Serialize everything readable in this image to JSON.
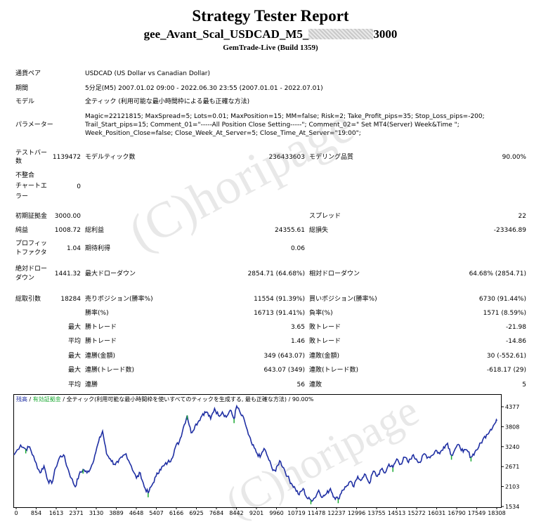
{
  "header": {
    "title": "Strategy Tester Report",
    "subtitle_pre": "gee_Avant_Scal_USDCAD_M5_",
    "subtitle_post": "3000",
    "server": "GemTrade-Live (Build 1359)"
  },
  "info": {
    "symbol_label": "通貨ペア",
    "symbol_value": "USDCAD (US Dollar vs Canadian Dollar)",
    "period_label": "期間",
    "period_value": "5分足(M5) 2007.01.02 09:00 - 2022.06.30 23:55 (2007.01.01 - 2022.07.01)",
    "model_label": "モデル",
    "model_value": "全ティック (利用可能な最小時間枠による最も正確な方法)",
    "params_label": "パラメーター",
    "params_lines": [
      "Magic=22121815; MaxSpread=5; Lots=0.01; MaxPosition=15; MM=false; Risk=2; Take_Profit_pips=35; Stop_Loss_pips=-200;",
      "Trail_Start_pips=15; Comment_01=\"-----All Position Close Setting-----\"; Comment_02=\" Set MT4(Server) Week&Time \";",
      "Week_Position_Close=false; Close_Week_At_Server=5; Close_Time_At_Server=\"19:00\";"
    ]
  },
  "stats": {
    "bars_label_1": "テストバー",
    "bars_label_2": "数",
    "bars_value": "1139472",
    "ticks_label": "モデルティック数",
    "ticks_value": "236433603",
    "quality_label": "モデリング品質",
    "quality_value": "90.00%",
    "mismatch_lines": [
      "不整合",
      "チャートエ",
      "ラー"
    ],
    "mismatch_value": "0",
    "deposit_label": "初期証拠金",
    "deposit_value": "3000.00",
    "spread_label": "スプレッド",
    "spread_value": "22",
    "netprofit_label": "純益",
    "netprofit_value": "1008.72",
    "grossprofit_label": "総利益",
    "grossprofit_value": "24355.61",
    "grossloss_label": "総損失",
    "grossloss_value": "-23346.89",
    "pf_label_1": "プロフィッ",
    "pf_label_2": "トファクタ",
    "pf_value": "1.04",
    "payoff_label": "期待利得",
    "payoff_value": "0.06",
    "absdd_label_1": "絶対ドロー",
    "absdd_label_2": "ダウン",
    "absdd_value": "1441.32",
    "maxdd_label": "最大ドローダウン",
    "maxdd_value": "2854.71 (64.68%)",
    "reldd_label": "相対ドローダウン",
    "reldd_value": "64.68% (2854.71)",
    "trades_label": "総取引数",
    "trades_value": "18284",
    "short_label": "売りポジション(勝率%)",
    "short_value": "11554 (91.39%)",
    "long_label": "買いポジション(勝率%)",
    "long_value": "6730 (91.44%)",
    "win_label": "勝率(%)",
    "win_value": "16713 (91.41%)",
    "loss_label": "負率(%)",
    "loss_value": "1571 (8.59%)",
    "max_label": "最大",
    "avg_label": "平均",
    "maxwin_label": "勝トレード",
    "maxwin_value": "3.65",
    "maxloss_label": "敗トレード",
    "maxloss_value": "-21.98",
    "avgwin_label": "勝トレード",
    "avgwin_value": "1.46",
    "avgloss_label": "敗トレード",
    "avgloss_value": "-14.86",
    "mcw_label": "連勝(金額)",
    "mcw_value": "349 (643.07)",
    "mcl_label": "連敗(金額)",
    "mcl_value": "30 (-552.61)",
    "mcp_label": "連勝(トレード数)",
    "mcp_value": "643.07 (349)",
    "mcll_label": "連敗(トレード数)",
    "mcll_value": "-618.17 (29)",
    "acw_label": "連勝",
    "acw_value": "56",
    "acl_label": "連敗",
    "acl_value": "5"
  },
  "watermark": {
    "text1": "(C)horipage",
    "text2": "(C)horipage"
  },
  "chart_data": {
    "type": "line",
    "legend": {
      "item1": "残高",
      "sep": " / ",
      "item2": "有効証拠金",
      "rest": " / 全ティック(利用可能な最小時間枠を使いすべてのティックを生成する, 最も正確な方法) / 90.00%"
    },
    "line_color": "#1f2fa3",
    "equity_color": "#1aa832",
    "xlim": [
      0,
      18700
    ],
    "ylim": [
      1534,
      4480
    ],
    "x_ticks": [
      "0",
      "854",
      "1613",
      "2371",
      "3130",
      "3889",
      "4648",
      "5407",
      "6166",
      "6925",
      "7684",
      "8442",
      "9201",
      "9960",
      "10719",
      "11478",
      "12237",
      "12996",
      "13755",
      "14513",
      "15272",
      "16031",
      "16790",
      "17549",
      "18308"
    ],
    "y_ticks": [
      "4377",
      "3808",
      "3240",
      "2671",
      "2103",
      "1534"
    ],
    "balance_points": [
      [
        0,
        3020
      ],
      [
        250,
        3300
      ],
      [
        450,
        3180
      ],
      [
        600,
        3250
      ],
      [
        800,
        2850
      ],
      [
        1000,
        2500
      ],
      [
        1150,
        2700
      ],
      [
        1300,
        2280
      ],
      [
        1450,
        2200
      ],
      [
        1600,
        2650
      ],
      [
        1750,
        2950
      ],
      [
        1900,
        3020
      ],
      [
        2050,
        2650
      ],
      [
        2200,
        2350
      ],
      [
        2350,
        2100
      ],
      [
        2500,
        2450
      ],
      [
        2650,
        2600
      ],
      [
        2800,
        2500
      ],
      [
        2950,
        2650
      ],
      [
        3100,
        3000
      ],
      [
        3250,
        3400
      ],
      [
        3400,
        3700
      ],
      [
        3550,
        3050
      ],
      [
        3700,
        2900
      ],
      [
        3850,
        2750
      ],
      [
        4000,
        2800
      ],
      [
        4150,
        2950
      ],
      [
        4300,
        3050
      ],
      [
        4500,
        2700
      ],
      [
        4700,
        2350
      ],
      [
        4850,
        2500
      ],
      [
        5000,
        2100
      ],
      [
        5150,
        1920
      ],
      [
        5300,
        2150
      ],
      [
        5450,
        2400
      ],
      [
        5600,
        2600
      ],
      [
        5750,
        2700
      ],
      [
        5900,
        2800
      ],
      [
        6050,
        2900
      ],
      [
        6200,
        3250
      ],
      [
        6350,
        3400
      ],
      [
        6500,
        3800
      ],
      [
        6650,
        4150
      ],
      [
        6800,
        3650
      ],
      [
        6950,
        3850
      ],
      [
        7100,
        4000
      ],
      [
        7250,
        4200
      ],
      [
        7400,
        4250
      ],
      [
        7550,
        4050
      ],
      [
        7700,
        4350
      ],
      [
        7850,
        4150
      ],
      [
        8000,
        4250
      ],
      [
        8150,
        4100
      ],
      [
        8300,
        4300
      ],
      [
        8450,
        4050
      ],
      [
        8550,
        4420
      ],
      [
        8700,
        4200
      ],
      [
        8850,
        4000
      ],
      [
        9000,
        3600
      ],
      [
        9150,
        3300
      ],
      [
        9300,
        3100
      ],
      [
        9450,
        2950
      ],
      [
        9600,
        3200
      ],
      [
        9750,
        2950
      ],
      [
        9900,
        2650
      ],
      [
        10050,
        2550
      ],
      [
        10200,
        2850
      ],
      [
        10350,
        2650
      ],
      [
        10500,
        2400
      ],
      [
        10650,
        2200
      ],
      [
        10800,
        2050
      ],
      [
        10950,
        1870
      ],
      [
        11100,
        2050
      ],
      [
        11250,
        1780
      ],
      [
        11400,
        1720
      ],
      [
        11550,
        1780
      ],
      [
        11700,
        2000
      ],
      [
        11850,
        1800
      ],
      [
        12000,
        1900
      ],
      [
        12150,
        2050
      ],
      [
        12300,
        1800
      ],
      [
        12450,
        1750
      ],
      [
        12600,
        2000
      ],
      [
        12750,
        2100
      ],
      [
        12900,
        2250
      ],
      [
        13050,
        2100
      ],
      [
        13200,
        2400
      ],
      [
        13350,
        2300
      ],
      [
        13500,
        2450
      ],
      [
        13650,
        2200
      ],
      [
        13800,
        2550
      ],
      [
        13950,
        2400
      ],
      [
        14100,
        2600
      ],
      [
        14250,
        2500
      ],
      [
        14400,
        2750
      ],
      [
        14550,
        2650
      ],
      [
        14700,
        2900
      ],
      [
        14850,
        2750
      ],
      [
        15000,
        2950
      ],
      [
        15150,
        2800
      ],
      [
        15300,
        3000
      ],
      [
        15450,
        2900
      ],
      [
        15600,
        2800
      ],
      [
        15750,
        3050
      ],
      [
        15900,
        2950
      ],
      [
        16050,
        3000
      ],
      [
        16200,
        3150
      ],
      [
        16350,
        3050
      ],
      [
        16500,
        3250
      ],
      [
        16650,
        3350
      ],
      [
        16800,
        3000
      ],
      [
        16950,
        3200
      ],
      [
        17100,
        3300
      ],
      [
        17250,
        3100
      ],
      [
        17400,
        3150
      ],
      [
        17550,
        2950
      ],
      [
        17700,
        3100
      ],
      [
        17850,
        3250
      ],
      [
        18000,
        3450
      ],
      [
        18150,
        3600
      ],
      [
        18300,
        3750
      ],
      [
        18450,
        3900
      ],
      [
        18550,
        4000
      ]
    ]
  }
}
